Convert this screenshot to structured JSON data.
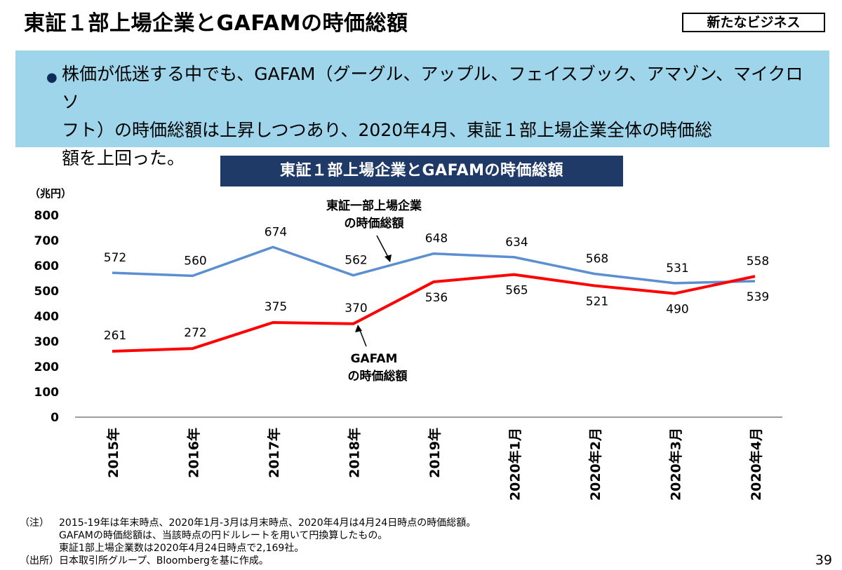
{
  "header": {
    "title": "東証１部上場企業とGAFAMの時価総額",
    "category": "新たなビジネス"
  },
  "summary": {
    "bullet": "●",
    "lines": [
      "株価が低迷する中でも、GAFAM（グーグル、アップル、フェイスブック、アマゾン、マイクロソ",
      "フト）の時価総額は上昇しつつあり、2020年4月、東証１部上場企業全体の時価総",
      "額を上回った。"
    ]
  },
  "chart_data": {
    "type": "line",
    "title": "東証１部上場企業とGAFAMの時価総額",
    "ylabel": "（兆円）",
    "ylim": [
      0,
      800
    ],
    "yticks": [
      0,
      100,
      200,
      300,
      400,
      500,
      600,
      700,
      800
    ],
    "categories": [
      "2015年",
      "2016年",
      "2017年",
      "2018年",
      "2019年",
      "2020年1月",
      "2020年2月",
      "2020年3月",
      "2020年4月"
    ],
    "series": [
      {
        "label_lines": [
          "東証一部上場企業",
          "の時価総額"
        ],
        "color": "#5b8fd2",
        "values": [
          572,
          560,
          674,
          562,
          648,
          634,
          568,
          531,
          539
        ]
      },
      {
        "label_lines": [
          "GAFAM",
          "の時価総額"
        ],
        "color": "#ff0000",
        "values": [
          261,
          272,
          375,
          370,
          536,
          565,
          521,
          490,
          558
        ]
      }
    ],
    "grid": false
  },
  "notes": {
    "note_label": "（注）",
    "note_lines": [
      "2015-19年は年末時点、2020年1月-3月は月末時点、2020年4月は4月24日時点の時価総額。",
      "GAFAMの時価総額は、当該時点の円ドルレートを用いて円換算したもの。",
      "東証1部上場企業数は2020年4月24日時点で2,169社。"
    ],
    "source_label": "（出所）",
    "source_text": "日本取引所グループ、Bloombergを基に作成。"
  },
  "page_number": "39"
}
